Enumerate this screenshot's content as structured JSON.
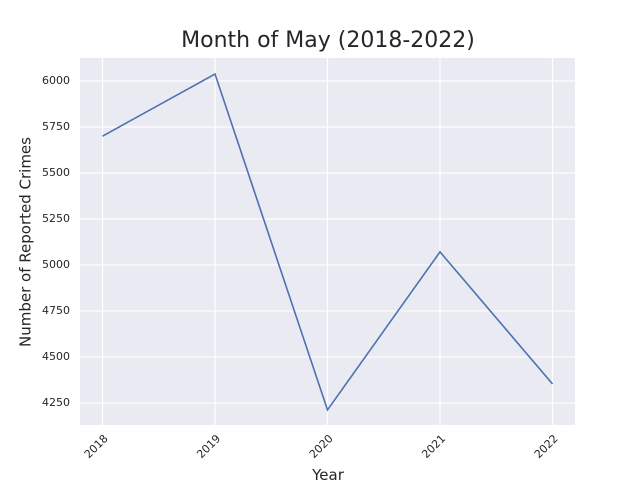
{
  "chart_data": {
    "type": "line",
    "title": "Month of May (2018-2022)",
    "x_label": "Year",
    "y_label": "Number of Reported Crimes",
    "x": [
      2018,
      2019,
      2020,
      2021,
      2022
    ],
    "series": [
      {
        "name": "Reported Crimes",
        "color": "#4c72b0",
        "values": [
          5700,
          6038,
          4212,
          5071,
          4353
        ]
      }
    ],
    "xlim": [
      2017.8,
      2022.2
    ],
    "xticks": [
      2018,
      2019,
      2020,
      2021,
      2022
    ],
    "ylim": [
      4130,
      6125
    ],
    "yticks": [
      4250,
      4500,
      4750,
      5000,
      5250,
      5500,
      5750,
      6000
    ],
    "grid": true,
    "background": "#eaeaf2"
  }
}
